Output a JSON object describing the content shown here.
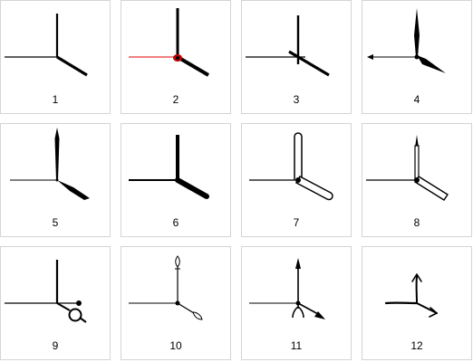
{
  "colors": {
    "ink": "#000000",
    "accent_red": "#e00000",
    "border": "#d4d4d4",
    "background": "#ffffff"
  },
  "styles": [
    {
      "label": "1",
      "icon": "clock-hands-thin-icon"
    },
    {
      "label": "2",
      "icon": "clock-hands-red-second-icon"
    },
    {
      "label": "3",
      "icon": "clock-hands-crossed-icon"
    },
    {
      "label": "4",
      "icon": "clock-hands-spear-icon"
    },
    {
      "label": "5",
      "icon": "clock-hands-leaf-icon"
    },
    {
      "label": "6",
      "icon": "clock-hands-bold-icon"
    },
    {
      "label": "7",
      "icon": "clock-hands-outline-icon"
    },
    {
      "label": "8",
      "icon": "clock-hands-arrow-outline-icon"
    },
    {
      "label": "9",
      "icon": "clock-hands-ring-icon"
    },
    {
      "label": "10",
      "icon": "clock-hands-ornate-icon"
    },
    {
      "label": "11",
      "icon": "clock-hands-arrow-icon"
    },
    {
      "label": "12",
      "icon": "clock-hands-sketch-icon"
    }
  ]
}
